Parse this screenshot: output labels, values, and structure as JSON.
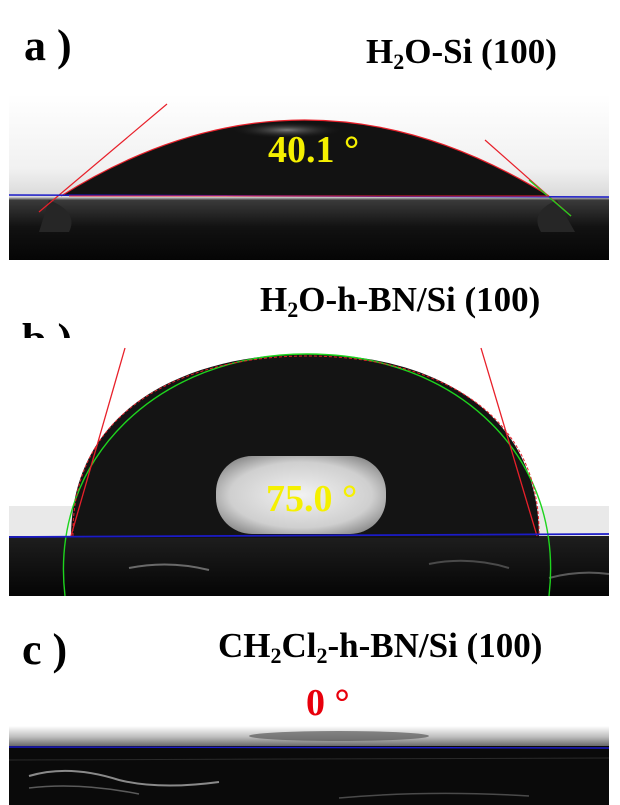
{
  "colors": {
    "annotation_yellow": "#f5f000",
    "annotation_red": "#e8000c",
    "tangent_line": "#e8202a",
    "baseline_blue": "#1b1bc8",
    "fit_green": "#1ed41e"
  },
  "panels": [
    {
      "label": "a )",
      "title_parts": [
        "H",
        "2",
        "O-Si (100)"
      ],
      "contact_angle": "40.1 °"
    },
    {
      "label": "b )",
      "title_parts": [
        "H",
        "2",
        "O-h-BN/Si (100)"
      ],
      "contact_angle": "75.0 °"
    },
    {
      "label": "c )",
      "title_parts": [
        "CH",
        "2",
        "Cl",
        "2",
        "-h-BN/Si (100)"
      ],
      "contact_angle": "0 °"
    }
  ]
}
